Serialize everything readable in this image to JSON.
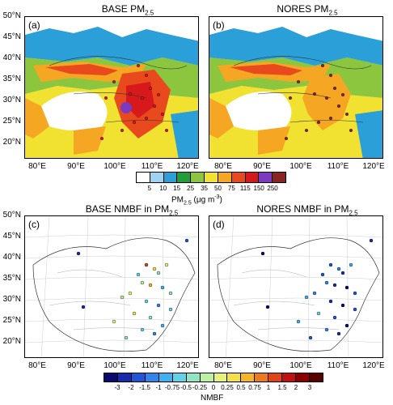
{
  "titles": {
    "a": {
      "main": "BASE PM",
      "sub": "2.5"
    },
    "b": {
      "main": "NORES PM",
      "sub": "2.5"
    },
    "c": {
      "main": "BASE NMBF in PM",
      "sub": "2.5"
    },
    "d": {
      "main": "NORES NMBF in PM",
      "sub": "2.5"
    }
  },
  "panel_letters": [
    "(a)",
    "(b)",
    "(c)",
    "(d)"
  ],
  "lat_labels": [
    "50°N",
    "45°N",
    "40°N",
    "35°N",
    "30°N",
    "25°N",
    "20°N"
  ],
  "lon_labels": [
    "80°E",
    "90°E",
    "100°E",
    "110°E",
    "120°E"
  ],
  "colorbar1": {
    "ticks": [
      "5",
      "10",
      "15",
      "25",
      "35",
      "50",
      "75",
      "115",
      "150",
      "250"
    ],
    "colors": [
      "#ffffff",
      "#9fd4f0",
      "#2a9fd8",
      "#1f9e3a",
      "#8cc63f",
      "#f1e232",
      "#f5a623",
      "#e8491d",
      "#d7191c",
      "#7b3ac2",
      "#8b2323"
    ],
    "title_main": "PM",
    "title_sub": "2.5",
    "title_unit_pre": " (μg m",
    "title_unit_sup": "-3",
    "title_unit_post": ")"
  },
  "colorbar2": {
    "ticks": [
      "-3",
      "-2",
      "-1.5",
      "-1",
      "-0.75",
      "-0.5",
      "-0.25",
      "0",
      "0.25",
      "0.5",
      "0.75",
      "1",
      "1.5",
      "2",
      "3"
    ],
    "colors": [
      "#0a0a6e",
      "#1a2aa8",
      "#1f55d6",
      "#2f86e8",
      "#3fb0f0",
      "#63d2e8",
      "#8ee6c2",
      "#bdf0a0",
      "#e6f37a",
      "#f5e04a",
      "#f5b52a",
      "#ee7a1e",
      "#e04416",
      "#c01010",
      "#8a0000",
      "#5a0000"
    ],
    "title": "NMBF"
  },
  "colors": {
    "land_bg": "#ffffff",
    "sea": "#ffffff",
    "border": "#333333",
    "grid": "#cccccc"
  }
}
